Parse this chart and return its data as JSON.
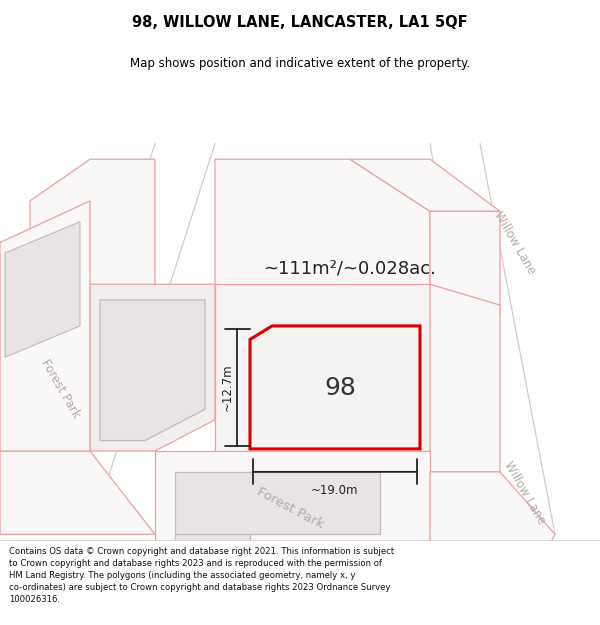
{
  "title_line1": "98, WILLOW LANE, LANCASTER, LA1 5QF",
  "title_line2": "Map shows position and indicative extent of the property.",
  "area_text": "~111m²/~0.028ac.",
  "house_number": "98",
  "dim_width": "~19.0m",
  "dim_height": "~12.7m",
  "footer_text": "Contains OS data © Crown copyright and database right 2021. This information is subject to Crown copyright and database rights 2023 and is reproduced with the permission of HM Land Registry. The polygons (including the associated geometry, namely x, y co-ordinates) are subject to Crown copyright and database rights 2023 Ordnance Survey 100026316.",
  "bg_color": "#ffffff",
  "map_bg": "#f8f6f6",
  "highlight_color": "#dd0000",
  "street_label_color": "#b0aaaa",
  "dim_line_color": "#222222",
  "title_color": "#000000",
  "footer_bg": "#ffffff",
  "parcel_outline": "#f0a0a0",
  "road_gray": "#d0cccc",
  "building_fill": "#e8e4e4",
  "building_outline_gray": "#c0bcbc"
}
